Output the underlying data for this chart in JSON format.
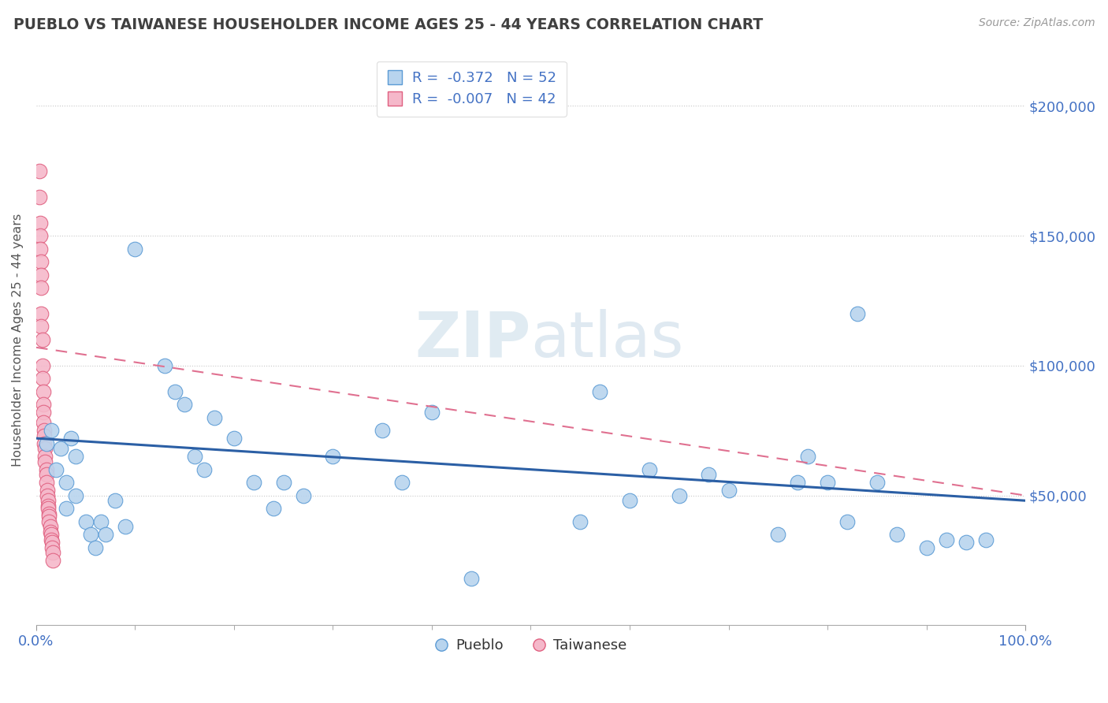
{
  "title": "PUEBLO VS TAIWANESE HOUSEHOLDER INCOME AGES 25 - 44 YEARS CORRELATION CHART",
  "source": "Source: ZipAtlas.com",
  "ylabel": "Householder Income Ages 25 - 44 years",
  "xlim": [
    0,
    1.0
  ],
  "ylim": [
    0,
    220000
  ],
  "yticks": [
    0,
    50000,
    100000,
    150000,
    200000
  ],
  "ytick_labels": [
    "",
    "$50,000",
    "$100,000",
    "$150,000",
    "$200,000"
  ],
  "pueblo_color": "#b8d4ee",
  "taiwanese_color": "#f5b8ca",
  "pueblo_edge": "#5b9bd5",
  "taiwanese_edge": "#e06080",
  "trend_pueblo_color": "#2b5fa5",
  "trend_taiwanese_color": "#e07090",
  "background_color": "#ffffff",
  "grid_color": "#c8c8c8",
  "title_color": "#404040",
  "axis_color": "#4472c4",
  "watermark_color": "#ddeef8",
  "pueblo_x": [
    0.01,
    0.015,
    0.02,
    0.025,
    0.03,
    0.03,
    0.035,
    0.04,
    0.04,
    0.05,
    0.055,
    0.06,
    0.065,
    0.07,
    0.08,
    0.09,
    0.1,
    0.13,
    0.14,
    0.15,
    0.16,
    0.17,
    0.18,
    0.2,
    0.22,
    0.24,
    0.25,
    0.27,
    0.3,
    0.35,
    0.37,
    0.4,
    0.44,
    0.55,
    0.57,
    0.6,
    0.62,
    0.65,
    0.68,
    0.7,
    0.75,
    0.77,
    0.78,
    0.8,
    0.82,
    0.83,
    0.85,
    0.87,
    0.9,
    0.92,
    0.94,
    0.96
  ],
  "pueblo_y": [
    70000,
    75000,
    60000,
    68000,
    55000,
    45000,
    72000,
    65000,
    50000,
    40000,
    35000,
    30000,
    40000,
    35000,
    48000,
    38000,
    145000,
    100000,
    90000,
    85000,
    65000,
    60000,
    80000,
    72000,
    55000,
    45000,
    55000,
    50000,
    65000,
    75000,
    55000,
    82000,
    18000,
    40000,
    90000,
    48000,
    60000,
    50000,
    58000,
    52000,
    35000,
    55000,
    65000,
    55000,
    40000,
    120000,
    55000,
    35000,
    30000,
    33000,
    32000,
    33000
  ],
  "taiwanese_x": [
    0.003,
    0.003,
    0.004,
    0.004,
    0.004,
    0.005,
    0.005,
    0.005,
    0.005,
    0.005,
    0.006,
    0.006,
    0.006,
    0.007,
    0.007,
    0.007,
    0.007,
    0.008,
    0.008,
    0.008,
    0.009,
    0.009,
    0.009,
    0.01,
    0.01,
    0.01,
    0.011,
    0.011,
    0.012,
    0.012,
    0.012,
    0.013,
    0.013,
    0.013,
    0.014,
    0.014,
    0.015,
    0.015,
    0.016,
    0.016,
    0.017,
    0.017
  ],
  "taiwanese_y": [
    175000,
    165000,
    155000,
    150000,
    145000,
    140000,
    135000,
    130000,
    120000,
    115000,
    110000,
    100000,
    95000,
    90000,
    85000,
    82000,
    78000,
    75000,
    73000,
    70000,
    68000,
    65000,
    63000,
    60000,
    58000,
    55000,
    52000,
    50000,
    48000,
    46000,
    45000,
    43000,
    42000,
    40000,
    38000,
    36000,
    35000,
    33000,
    32000,
    30000,
    28000,
    25000
  ],
  "pueblo_trend_x0": 0.0,
  "pueblo_trend_y0": 72000,
  "pueblo_trend_x1": 1.0,
  "pueblo_trend_y1": 48000,
  "taiwanese_trend_x0": 0.0,
  "taiwanese_trend_y0": 107000,
  "taiwanese_trend_x1": 1.0,
  "taiwanese_trend_y1": 50000
}
